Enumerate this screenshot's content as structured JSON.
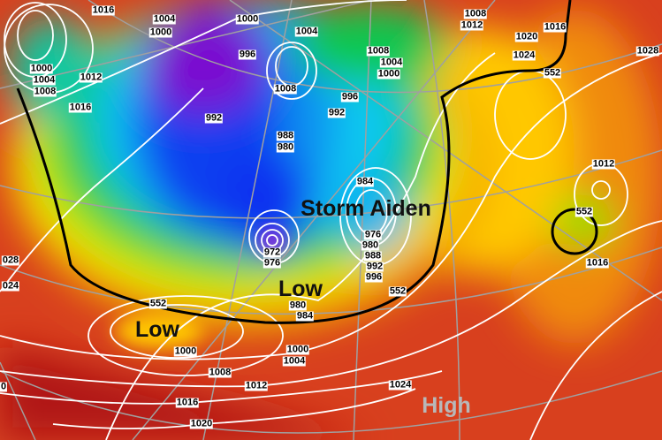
{
  "map": {
    "systems": [
      {
        "label": "Storm Aiden",
        "kind": "low"
      },
      {
        "label": "Low",
        "kind": "low"
      },
      {
        "label": "Low",
        "kind": "low"
      },
      {
        "label": "High",
        "kind": "high"
      }
    ],
    "isobar_labels": [
      "1016",
      "1004",
      "1000",
      "1000",
      "1004",
      "996",
      "1000",
      "1004",
      "1008",
      "1012",
      "1016",
      "1008",
      "992",
      "988",
      "980",
      "1008",
      "1012",
      "1016",
      "1020",
      "1024",
      "552",
      "1008",
      "1004",
      "1000",
      "996",
      "992",
      "984",
      "1012",
      "552",
      "1016",
      "1028",
      "028",
      "024",
      "976",
      "980",
      "988",
      "992",
      "996",
      "972",
      "976",
      "552",
      "552",
      "980",
      "984",
      "1000",
      "1000",
      "1004",
      "1008",
      "1012",
      "1016",
      "1020",
      "1024",
      "0"
    ],
    "colors": {
      "deep_low": "#7a10d0",
      "low": "#1040f0",
      "mid": "#10c8f0",
      "neutral": "#10c850",
      "warm": "#ffee00",
      "high": "#e84a1e",
      "very_high": "#b01818",
      "isobar": "#ffffff",
      "thickness_552": "#000000",
      "graticule": "#a0a0a0"
    }
  }
}
